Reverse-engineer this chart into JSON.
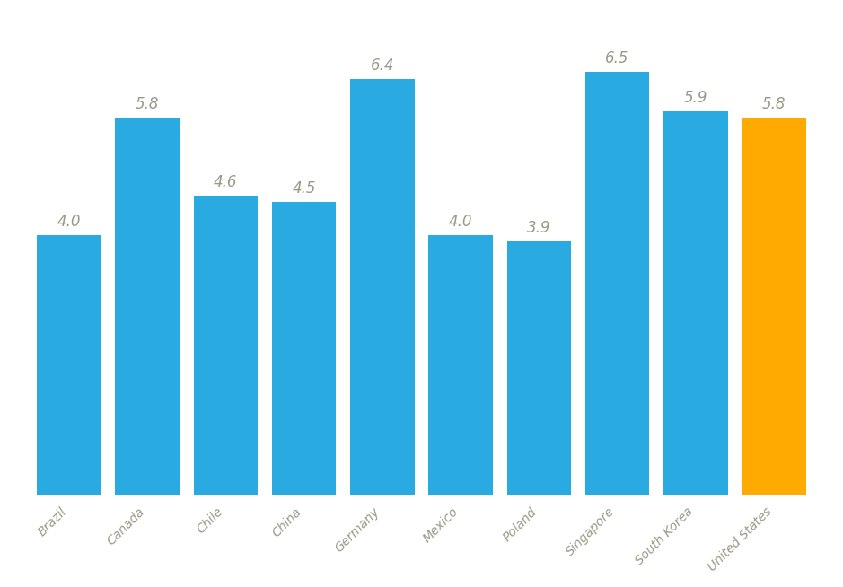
{
  "categories": [
    "Brazil",
    "Canada",
    "Chile",
    "China",
    "Germany",
    "Mexico",
    "Poland",
    "Singapore",
    "South Korea",
    "United States"
  ],
  "values": [
    4.0,
    5.8,
    4.6,
    4.5,
    6.4,
    4.0,
    3.9,
    6.5,
    5.9,
    5.8
  ],
  "bar_colors": [
    "#29ABE2",
    "#29ABE2",
    "#29ABE2",
    "#29ABE2",
    "#29ABE2",
    "#29ABE2",
    "#29ABE2",
    "#29ABE2",
    "#29ABE2",
    "#FFAA00"
  ],
  "value_label_color": "#999988",
  "background_color": "#FFFFFF",
  "ylim": [
    0,
    7.4
  ],
  "bar_width": 0.82,
  "value_fontsize": 12,
  "tick_fontsize": 10,
  "label_color": "#999988"
}
